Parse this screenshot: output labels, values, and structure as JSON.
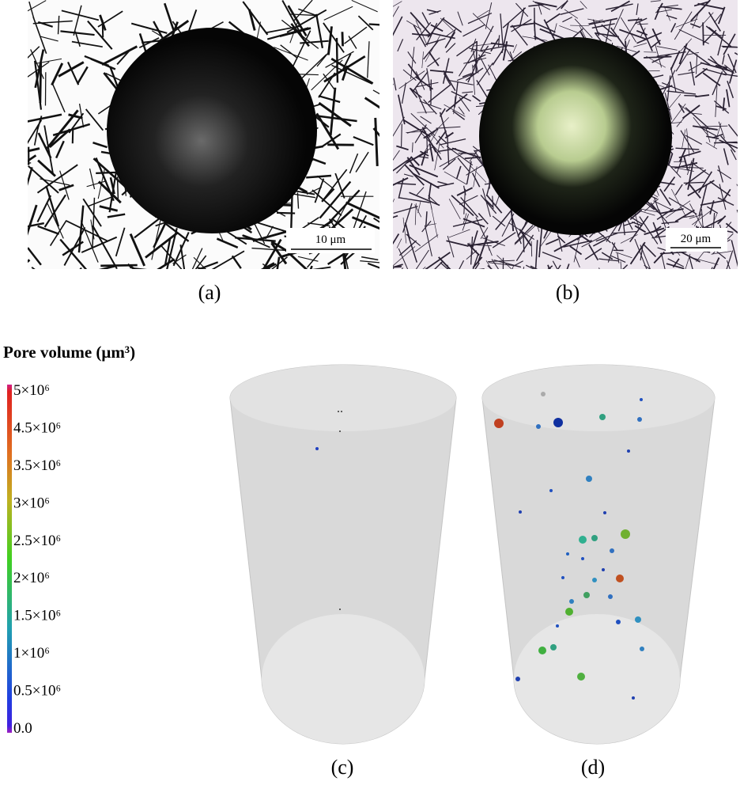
{
  "panels": {
    "a": {
      "label": "(a)",
      "scale_bar": "10 μm"
    },
    "b": {
      "label": "(b)",
      "scale_bar": "20 μm"
    },
    "c": {
      "label": "(c)"
    },
    "d": {
      "label": "(d)"
    }
  },
  "colorbar": {
    "title": "Pore volume (μm³)",
    "labels": [
      "5×10⁶",
      "4.5×10⁶",
      "3.5×10⁶",
      "3×10⁶",
      "2.5×10⁶",
      "2×10⁶",
      "1.5×10⁶",
      "1×10⁶",
      "0.5×10⁶",
      "0.0"
    ]
  }
}
